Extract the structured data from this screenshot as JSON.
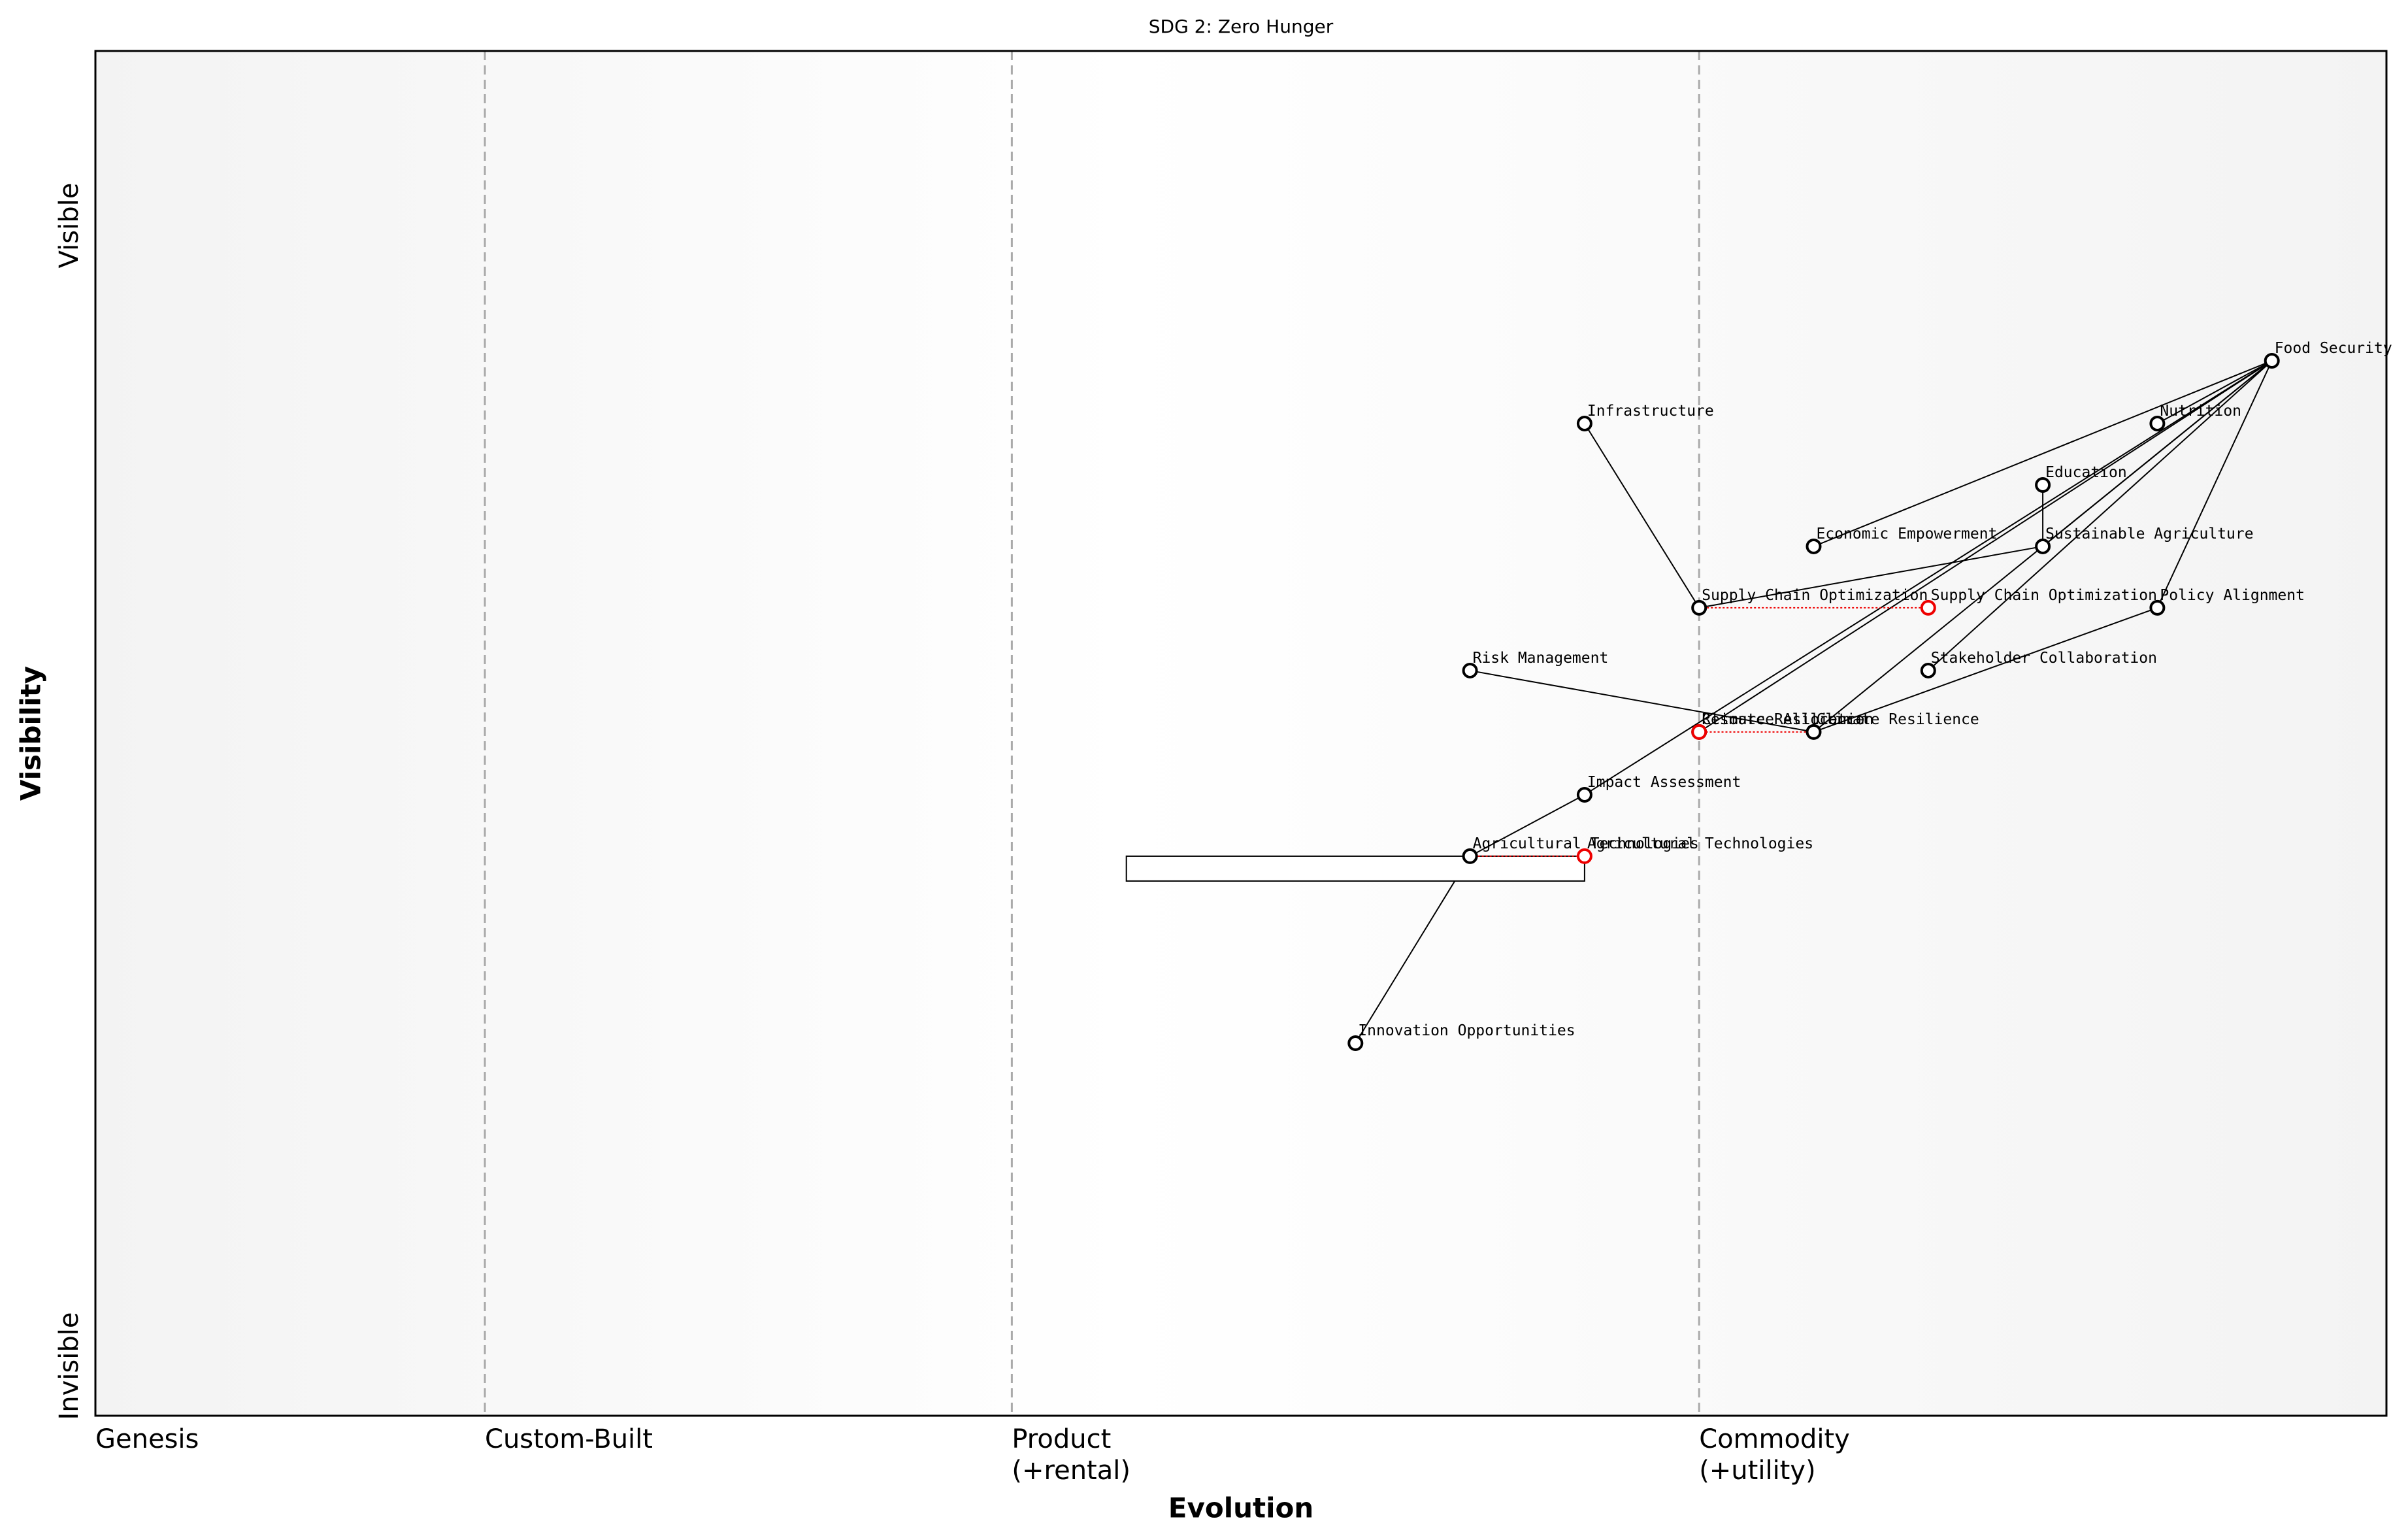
{
  "chart_data": {
    "type": "wardley",
    "title": "SDG 2: Zero Hunger",
    "x_label": "Evolution",
    "y_label": "Visibility",
    "y_top_label": "Visible",
    "y_bottom_label": "Invisible",
    "xlim": [
      0,
      1
    ],
    "ylim": [
      0,
      1
    ],
    "stages": [
      {
        "value": 0,
        "label": [
          "Genesis"
        ]
      },
      {
        "value": 0.17,
        "label": [
          "Custom-Built"
        ]
      },
      {
        "value": 0.4,
        "label": [
          "Product",
          "(+rental)"
        ]
      },
      {
        "value": 0.7,
        "label": [
          "Commodity",
          "(+utility)"
        ]
      }
    ],
    "components": [
      {
        "name": "Food Security",
        "evolution": 0.95,
        "visibility": 0.773
      },
      {
        "name": "Nutrition",
        "evolution": 0.9,
        "visibility": 0.727
      },
      {
        "name": "Education",
        "evolution": 0.85,
        "visibility": 0.682
      },
      {
        "name": "Economic Empowerment",
        "evolution": 0.75,
        "visibility": 0.637
      },
      {
        "name": "Sustainable Agriculture",
        "evolution": 0.85,
        "visibility": 0.637
      },
      {
        "name": "Infrastructure",
        "evolution": 0.65,
        "visibility": 0.727
      },
      {
        "name": "Supply Chain Optimization",
        "evolution": 0.7,
        "visibility": 0.592,
        "evolve_to": 0.8
      },
      {
        "name": "Policy Alignment",
        "evolution": 0.9,
        "visibility": 0.592
      },
      {
        "name": "Risk Management",
        "evolution": 0.6,
        "visibility": 0.546
      },
      {
        "name": "Stakeholder Collaboration",
        "evolution": 0.8,
        "visibility": 0.546
      },
      {
        "name": "Resource Allocation",
        "evolution": 0.7,
        "visibility": 0.501
      },
      {
        "name": "Climate Resilience",
        "evolution": 0.75,
        "visibility": 0.501,
        "evolve_to": 0.7
      },
      {
        "name": "Impact Assessment",
        "evolution": 0.65,
        "visibility": 0.455
      },
      {
        "name": "Agricultural Technologies",
        "evolution": 0.6,
        "visibility": 0.41,
        "evolve_to": 0.65,
        "pipeline": [
          0.45,
          0.65
        ]
      },
      {
        "name": "Innovation Opportunities",
        "evolution": 0.55,
        "visibility": 0.273
      }
    ],
    "links": [
      [
        "Food Security",
        "Nutrition"
      ],
      [
        "Food Security",
        "Economic Empowerment"
      ],
      [
        "Food Security",
        "Sustainable Agriculture"
      ],
      [
        "Food Security",
        "Policy Alignment"
      ],
      [
        "Food Security",
        "Stakeholder Collaboration"
      ],
      [
        "Food Security",
        "Climate Resilience"
      ],
      [
        "Food Security",
        "Resource Allocation"
      ],
      [
        "Food Security",
        "Impact Assessment"
      ],
      [
        "Education",
        "Sustainable Agriculture"
      ],
      [
        "Sustainable Agriculture",
        "Supply Chain Optimization"
      ],
      [
        "Infrastructure",
        "Supply Chain Optimization"
      ],
      [
        "Policy Alignment",
        "Climate Resilience"
      ],
      [
        "Risk Management",
        "Climate Resilience"
      ],
      [
        "Impact Assessment",
        "Agricultural Technologies"
      ],
      [
        "Agricultural Technologies",
        "Innovation Opportunities"
      ]
    ]
  }
}
